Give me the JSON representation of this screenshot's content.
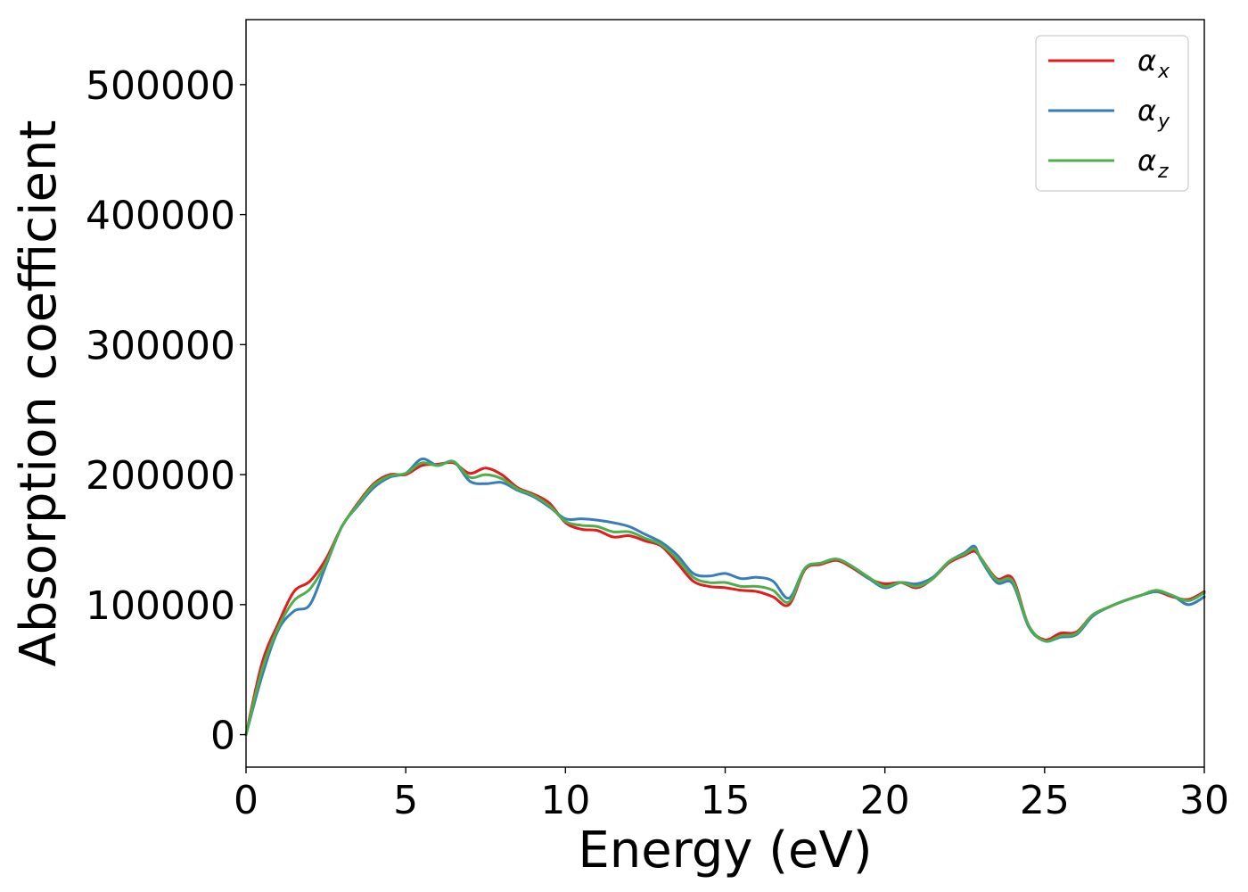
{
  "chart_data": {
    "type": "line",
    "title": "",
    "xlabel": "Energy (eV)",
    "ylabel": "Absorption coefficient",
    "xlim": [
      0,
      30
    ],
    "ylim": [
      -25000,
      550000
    ],
    "xticks": [
      0,
      5,
      10,
      15,
      20,
      25,
      30
    ],
    "xtick_labels": [
      "0",
      "5",
      "10",
      "15",
      "20",
      "25",
      "30"
    ],
    "yticks": [
      0,
      100000,
      200000,
      300000,
      400000,
      500000
    ],
    "ytick_labels": [
      "0",
      "100000",
      "200000",
      "300000",
      "400000",
      "500000"
    ],
    "grid": false,
    "legend_position": "top-right",
    "x": [
      0,
      0.5,
      1,
      1.5,
      2,
      2.5,
      3,
      3.5,
      4,
      4.5,
      5,
      5.5,
      6,
      6.5,
      7,
      7.5,
      8,
      8.5,
      9,
      9.5,
      10,
      10.5,
      11,
      11.5,
      12,
      12.5,
      13,
      13.5,
      14,
      14.5,
      15,
      15.5,
      16,
      16.5,
      17,
      17.5,
      18,
      18.5,
      19,
      19.5,
      20,
      20.5,
      21,
      21.5,
      22,
      22.5,
      22.8,
      23,
      23.5,
      24,
      24.5,
      25,
      25.5,
      26,
      26.5,
      27,
      27.5,
      28,
      28.5,
      29,
      29.5,
      30
    ],
    "series": [
      {
        "name": "α",
        "subscript": "x",
        "color": "#e41a1c",
        "values": [
          0,
          55000,
          85000,
          110000,
          118000,
          135000,
          160000,
          178000,
          193000,
          200000,
          200000,
          207000,
          208000,
          209000,
          201000,
          205000,
          200000,
          190000,
          185000,
          178000,
          163000,
          158000,
          157000,
          152000,
          153000,
          149000,
          145000,
          132000,
          118000,
          114000,
          113000,
          111000,
          110000,
          106000,
          100000,
          127000,
          131000,
          134000,
          128000,
          120000,
          116000,
          117000,
          113000,
          120000,
          132000,
          138000,
          141000,
          136000,
          120000,
          120000,
          84000,
          73000,
          78000,
          79000,
          92000,
          98000,
          103000,
          107000,
          110000,
          106000,
          104000,
          110000
        ]
      },
      {
        "name": "α",
        "subscript": "y",
        "color": "#377eb8",
        "values": [
          0,
          45000,
          80000,
          95000,
          100000,
          130000,
          160000,
          176000,
          190000,
          198000,
          201000,
          212000,
          207000,
          210000,
          195000,
          193000,
          194000,
          188000,
          183000,
          175000,
          166000,
          166000,
          165000,
          163000,
          160000,
          154000,
          148000,
          138000,
          124000,
          122000,
          124000,
          120000,
          121000,
          118000,
          105000,
          128000,
          132000,
          135000,
          129000,
          120000,
          113000,
          117000,
          116000,
          121000,
          133000,
          140000,
          145000,
          135000,
          117000,
          116000,
          83000,
          72000,
          75000,
          77000,
          91000,
          98000,
          103000,
          107000,
          110000,
          107000,
          100000,
          106000
        ]
      },
      {
        "name": "α",
        "subscript": "z",
        "color": "#4daf4a",
        "values": [
          0,
          50000,
          82000,
          103000,
          112000,
          132000,
          160000,
          177000,
          192000,
          199000,
          201000,
          209000,
          207000,
          210000,
          198000,
          200000,
          197000,
          189000,
          184000,
          176000,
          164000,
          161000,
          160000,
          156000,
          156000,
          151000,
          146000,
          135000,
          121000,
          117000,
          117000,
          114000,
          114000,
          111000,
          102000,
          128000,
          132000,
          135000,
          129000,
          121000,
          114000,
          117000,
          114000,
          120000,
          133000,
          139000,
          143000,
          136000,
          119000,
          118000,
          84000,
          72000,
          76000,
          78000,
          92000,
          98000,
          103000,
          107000,
          111000,
          107000,
          103000,
          109000
        ]
      }
    ]
  }
}
